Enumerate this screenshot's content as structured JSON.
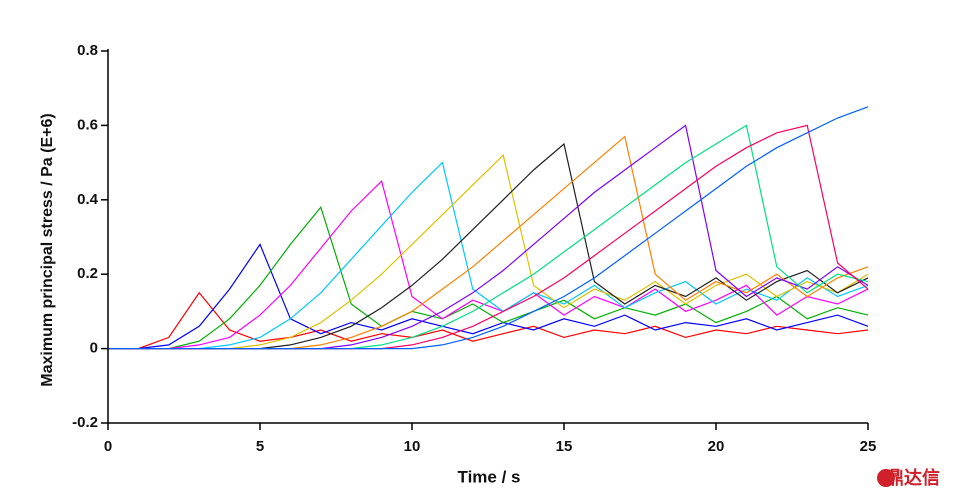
{
  "chart_data": {
    "type": "line",
    "x_label": "Time / s",
    "y_label": "Maximum principal stress / Pa (E+6)",
    "x": [
      0,
      1,
      2,
      3,
      4,
      5,
      6,
      7,
      8,
      9,
      10,
      11,
      12,
      13,
      14,
      15,
      16,
      17,
      18,
      19,
      20,
      21,
      22,
      23,
      24,
      25
    ],
    "series": [
      {
        "color": "#ff0000",
        "values": [
          0,
          0,
          0.03,
          0.15,
          0.05,
          0.02,
          0.03,
          0.05,
          0.02,
          0.04,
          0.03,
          0.05,
          0.02,
          0.04,
          0.06,
          0.03,
          0.05,
          0.04,
          0.06,
          0.03,
          0.05,
          0.04,
          0.06,
          0.05,
          0.04,
          0.05
        ]
      },
      {
        "color": "#0000ff",
        "values": [
          0,
          0,
          0.01,
          0.06,
          0.16,
          0.28,
          0.08,
          0.04,
          0.07,
          0.05,
          0.08,
          0.06,
          0.04,
          0.07,
          0.05,
          0.08,
          0.06,
          0.09,
          0.05,
          0.07,
          0.06,
          0.08,
          0.05,
          0.07,
          0.09,
          0.06
        ]
      },
      {
        "color": "#00b000",
        "values": [
          0,
          0,
          0,
          0.02,
          0.08,
          0.17,
          0.28,
          0.38,
          0.12,
          0.06,
          0.1,
          0.08,
          0.12,
          0.07,
          0.1,
          0.13,
          0.08,
          0.11,
          0.09,
          0.12,
          0.07,
          0.1,
          0.14,
          0.08,
          0.11,
          0.09
        ]
      },
      {
        "color": "#ff00ff",
        "values": [
          0,
          0,
          0,
          0.01,
          0.03,
          0.09,
          0.17,
          0.27,
          0.37,
          0.45,
          0.14,
          0.08,
          0.13,
          0.1,
          0.15,
          0.09,
          0.14,
          0.11,
          0.16,
          0.1,
          0.13,
          0.17,
          0.09,
          0.14,
          0.12,
          0.16
        ]
      },
      {
        "color": "#00c8ff",
        "values": [
          0,
          0,
          0,
          0,
          0.01,
          0.03,
          0.08,
          0.15,
          0.24,
          0.33,
          0.42,
          0.5,
          0.16,
          0.1,
          0.15,
          0.12,
          0.17,
          0.11,
          0.15,
          0.18,
          0.12,
          0.16,
          0.13,
          0.19,
          0.14,
          0.17
        ]
      },
      {
        "color": "#e0c000",
        "values": [
          0,
          0,
          0,
          0,
          0,
          0.01,
          0.03,
          0.07,
          0.13,
          0.2,
          0.28,
          0.36,
          0.44,
          0.52,
          0.17,
          0.11,
          0.16,
          0.13,
          0.18,
          0.12,
          0.17,
          0.2,
          0.14,
          0.18,
          0.15,
          0.2
        ]
      },
      {
        "color": "#202020",
        "values": [
          0,
          0,
          0,
          0,
          0,
          0,
          0.01,
          0.03,
          0.06,
          0.11,
          0.17,
          0.24,
          0.32,
          0.4,
          0.48,
          0.55,
          0.18,
          0.12,
          0.17,
          0.14,
          0.19,
          0.13,
          0.18,
          0.21,
          0.15,
          0.19
        ]
      },
      {
        "color": "#ff8000",
        "values": [
          0,
          0,
          0,
          0,
          0,
          0,
          0,
          0.01,
          0.03,
          0.06,
          0.1,
          0.16,
          0.22,
          0.29,
          0.36,
          0.43,
          0.5,
          0.57,
          0.2,
          0.13,
          0.18,
          0.15,
          0.2,
          0.14,
          0.19,
          0.22
        ]
      },
      {
        "color": "#8000ff",
        "values": [
          0,
          0,
          0,
          0,
          0,
          0,
          0,
          0,
          0.01,
          0.03,
          0.06,
          0.1,
          0.15,
          0.21,
          0.28,
          0.35,
          0.42,
          0.48,
          0.54,
          0.6,
          0.21,
          0.14,
          0.19,
          0.16,
          0.22,
          0.17
        ]
      },
      {
        "color": "#00e080",
        "values": [
          0,
          0,
          0,
          0,
          0,
          0,
          0,
          0,
          0,
          0.01,
          0.03,
          0.06,
          0.1,
          0.15,
          0.2,
          0.26,
          0.32,
          0.38,
          0.44,
          0.5,
          0.55,
          0.6,
          0.22,
          0.15,
          0.2,
          0.18
        ]
      },
      {
        "color": "#ff0060",
        "values": [
          0,
          0,
          0,
          0,
          0,
          0,
          0,
          0,
          0,
          0,
          0.01,
          0.03,
          0.06,
          0.1,
          0.14,
          0.19,
          0.25,
          0.31,
          0.37,
          0.43,
          0.49,
          0.54,
          0.58,
          0.6,
          0.23,
          0.16
        ]
      },
      {
        "color": "#0060ff",
        "values": [
          0,
          0,
          0,
          0,
          0,
          0,
          0,
          0,
          0,
          0,
          0,
          0.01,
          0.03,
          0.06,
          0.1,
          0.14,
          0.19,
          0.25,
          0.31,
          0.37,
          0.43,
          0.49,
          0.54,
          0.58,
          0.62,
          0.65
        ]
      }
    ],
    "xlim": [
      0,
      25
    ],
    "xticks": [
      0,
      5,
      10,
      15,
      20,
      25
    ],
    "ylim": [
      -0.2,
      0.8
    ],
    "yticks": [
      -0.2,
      0,
      0.2,
      0.4,
      0.6,
      0.8
    ],
    "grid": false
  },
  "watermark": "鼎达信"
}
